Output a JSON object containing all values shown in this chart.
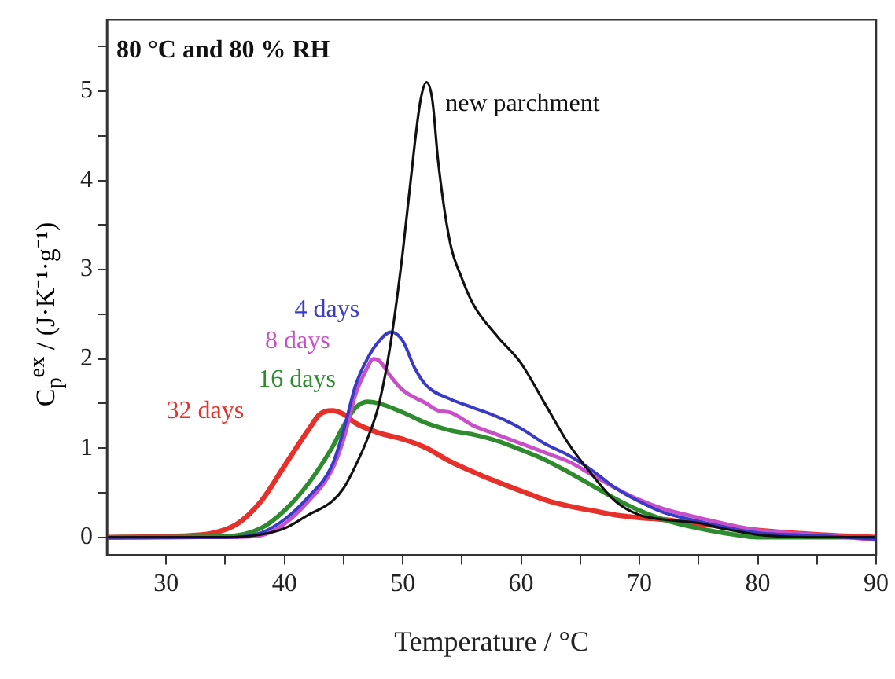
{
  "chart_data": {
    "type": "line",
    "xlabel": "Temperature / °C",
    "ylabel": "C$_{p}$$^{ex}$ / (J·K⁻¹·g⁻¹)",
    "annotations": [
      "80 °C and 80 % RH"
    ],
    "xlim": [
      25,
      90
    ],
    "xticks": [
      30,
      {
        "value": 35,
        "label": null
      },
      40,
      {
        "value": 45,
        "label": null
      },
      50,
      {
        "value": 55,
        "label": null
      },
      60,
      {
        "value": 65,
        "label": null
      },
      70,
      {
        "value": 75,
        "label": null
      },
      80,
      {
        "value": 85,
        "label": null
      },
      90
    ],
    "ylim": [
      -0.2,
      5.8
    ],
    "yticks": [
      0,
      {
        "value": 0.5,
        "label": null
      },
      1,
      {
        "value": 1.5,
        "label": null
      },
      2,
      {
        "value": 2.5,
        "label": null
      },
      3,
      {
        "value": 3.5,
        "label": null
      },
      4,
      {
        "value": 4.5,
        "label": null
      },
      5,
      {
        "value": 5.5,
        "label": null
      }
    ],
    "grid": false,
    "legend": false,
    "marker": "none",
    "line_style": "solid",
    "series": [
      {
        "name": "new parchment",
        "color": "#111111",
        "x": [
          25,
          30,
          35,
          38,
          40,
          42,
          44,
          45,
          46,
          47,
          48,
          49,
          50,
          51,
          51.5,
          52,
          52.5,
          53,
          54,
          55,
          56,
          58,
          60,
          62,
          64,
          66,
          68,
          70,
          72,
          75,
          77,
          80,
          85,
          90
        ],
        "values": [
          0,
          0,
          0,
          0.03,
          0.1,
          0.25,
          0.4,
          0.55,
          0.8,
          1.1,
          1.5,
          2.2,
          3.2,
          4.4,
          4.9,
          5.1,
          4.9,
          4.2,
          3.3,
          2.9,
          2.6,
          2.25,
          1.95,
          1.5,
          1.05,
          0.7,
          0.4,
          0.25,
          0.2,
          0.16,
          0.1,
          0.03,
          0,
          0
        ]
      },
      {
        "name": "4 days",
        "color": "#3a3ac8",
        "x": [
          25,
          35,
          38,
          40,
          42,
          44,
          45,
          46,
          47,
          48,
          49,
          50,
          51,
          52,
          54,
          56,
          58,
          60,
          62,
          64,
          66,
          68,
          70,
          72,
          75,
          80,
          85,
          90
        ],
        "values": [
          0,
          0,
          0.05,
          0.2,
          0.45,
          0.8,
          1.2,
          1.7,
          2.0,
          2.2,
          2.3,
          2.2,
          1.9,
          1.7,
          1.55,
          1.45,
          1.35,
          1.22,
          1.05,
          0.92,
          0.75,
          0.55,
          0.4,
          0.28,
          0.18,
          0.05,
          0.02,
          -0.02
        ]
      },
      {
        "name": "8 days",
        "color": "#c94fc9",
        "x": [
          25,
          35,
          38,
          40,
          42,
          44,
          45,
          46,
          47,
          47.5,
          48,
          49,
          50,
          52,
          53,
          54,
          56,
          58,
          60,
          62,
          64,
          66,
          68,
          70,
          72,
          75,
          80,
          85,
          90
        ],
        "values": [
          0,
          0,
          0.02,
          0.15,
          0.4,
          0.75,
          1.1,
          1.6,
          1.9,
          2.0,
          1.98,
          1.8,
          1.65,
          1.5,
          1.42,
          1.4,
          1.25,
          1.15,
          1.05,
          0.95,
          0.85,
          0.7,
          0.55,
          0.42,
          0.32,
          0.22,
          0.08,
          0.03,
          -0.03
        ]
      },
      {
        "name": "16 days",
        "color": "#2e8b2e",
        "x": [
          25,
          35,
          38,
          40,
          42,
          44,
          45,
          46,
          47,
          48,
          50,
          52,
          54,
          56,
          58,
          60,
          62,
          64,
          66,
          68,
          70,
          72,
          75,
          78,
          80,
          85,
          90
        ],
        "values": [
          0,
          0.01,
          0.1,
          0.3,
          0.6,
          1.0,
          1.25,
          1.45,
          1.52,
          1.5,
          1.4,
          1.28,
          1.2,
          1.15,
          1.08,
          0.98,
          0.87,
          0.73,
          0.58,
          0.43,
          0.3,
          0.2,
          0.1,
          0.03,
          0,
          0,
          0
        ]
      },
      {
        "name": "32 days",
        "color": "#e8302a",
        "x": [
          25,
          30,
          34,
          36,
          38,
          40,
          42,
          43,
          44,
          45,
          46,
          48,
          50,
          52,
          54,
          56,
          58,
          60,
          62,
          64,
          66,
          68,
          70,
          72,
          75,
          80,
          85,
          90
        ],
        "values": [
          0,
          0.01,
          0.05,
          0.15,
          0.4,
          0.8,
          1.2,
          1.38,
          1.42,
          1.38,
          1.28,
          1.17,
          1.1,
          1.0,
          0.85,
          0.73,
          0.62,
          0.52,
          0.42,
          0.35,
          0.3,
          0.25,
          0.22,
          0.2,
          0.15,
          0.08,
          0.03,
          0
        ]
      }
    ]
  }
}
